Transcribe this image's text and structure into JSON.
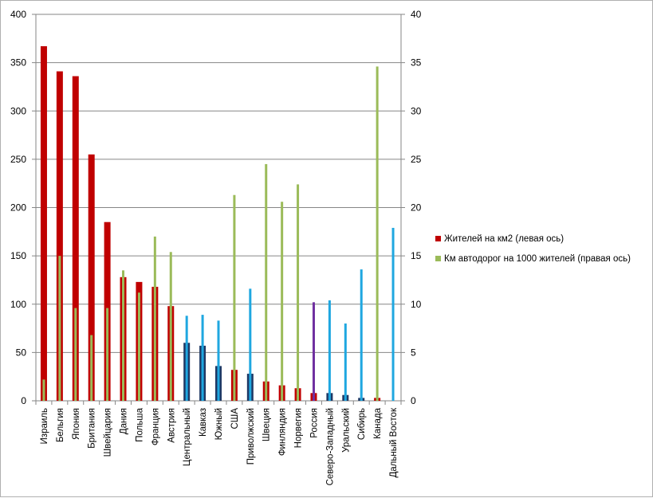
{
  "chart_data": {
    "type": "bar",
    "categories": [
      "Израиль",
      "Бельгия",
      "Япония",
      "Британия",
      "Швейцария",
      "Дания",
      "Польша",
      "Франция",
      "Австрия",
      "Центральный",
      "Кавказ",
      "Южный",
      "США",
      "Приволжский",
      "Швеция",
      "Финляндия",
      "Норвегия",
      "Россия",
      "Северо-Западный",
      "Уральский",
      "Сибирь",
      "Канада",
      "Дальный Восток"
    ],
    "series": [
      {
        "name": "Жителей  на км2 (левая ось)",
        "axis": "left",
        "values": [
          367,
          341,
          336,
          255,
          185,
          128,
          123,
          118,
          98,
          60,
          57,
          36,
          32,
          28,
          20,
          16,
          13,
          8,
          8,
          6,
          3,
          3,
          0
        ],
        "colors": [
          "#c00000",
          "#c00000",
          "#c00000",
          "#c00000",
          "#c00000",
          "#c00000",
          "#c00000",
          "#c00000",
          "#c00000",
          "#1f3864",
          "#1f3864",
          "#1f3864",
          "#c00000",
          "#1f3864",
          "#c00000",
          "#c00000",
          "#c00000",
          "#c00000",
          "#1f3864",
          "#1f3864",
          "#1f3864",
          "#c00000",
          "#1f3864"
        ]
      },
      {
        "name": "Км автодорог на 1000 жителей  (правая ось)",
        "axis": "right",
        "values": [
          2.2,
          15,
          9.6,
          6.8,
          9.6,
          13.5,
          11.2,
          17,
          15.4,
          8.8,
          8.9,
          8.3,
          21.3,
          11.6,
          24.5,
          20.6,
          22.4,
          10.2,
          10.4,
          8,
          13.6,
          34.6,
          17.9
        ],
        "colors": [
          "#9bbb59",
          "#9bbb59",
          "#9bbb59",
          "#9bbb59",
          "#9bbb59",
          "#9bbb59",
          "#9bbb59",
          "#9bbb59",
          "#9bbb59",
          "#1fa7e0",
          "#1fa7e0",
          "#1fa7e0",
          "#9bbb59",
          "#1fa7e0",
          "#9bbb59",
          "#9bbb59",
          "#9bbb59",
          "#7030a0",
          "#1fa7e0",
          "#1fa7e0",
          "#1fa7e0",
          "#9bbb59",
          "#1fa7e0"
        ]
      }
    ],
    "ylim_left": [
      0,
      400
    ],
    "yticks_left": [
      "0",
      "50",
      "100",
      "150",
      "200",
      "250",
      "300",
      "350",
      "400"
    ],
    "ylim_right": [
      0,
      40
    ],
    "yticks_right": [
      "0",
      "5",
      "10",
      "15",
      "20",
      "25",
      "30",
      "35",
      "40"
    ],
    "legend": {
      "position": "right",
      "entries": [
        {
          "label": "Жителей  на км2 (левая ось)",
          "color": "#c00000"
        },
        {
          "label": "Км автодорог на 1000 жителей  (правая ось)",
          "color": "#9bbb59"
        }
      ]
    },
    "grid": true,
    "title": "",
    "xlabel": "",
    "ylabel": ""
  }
}
